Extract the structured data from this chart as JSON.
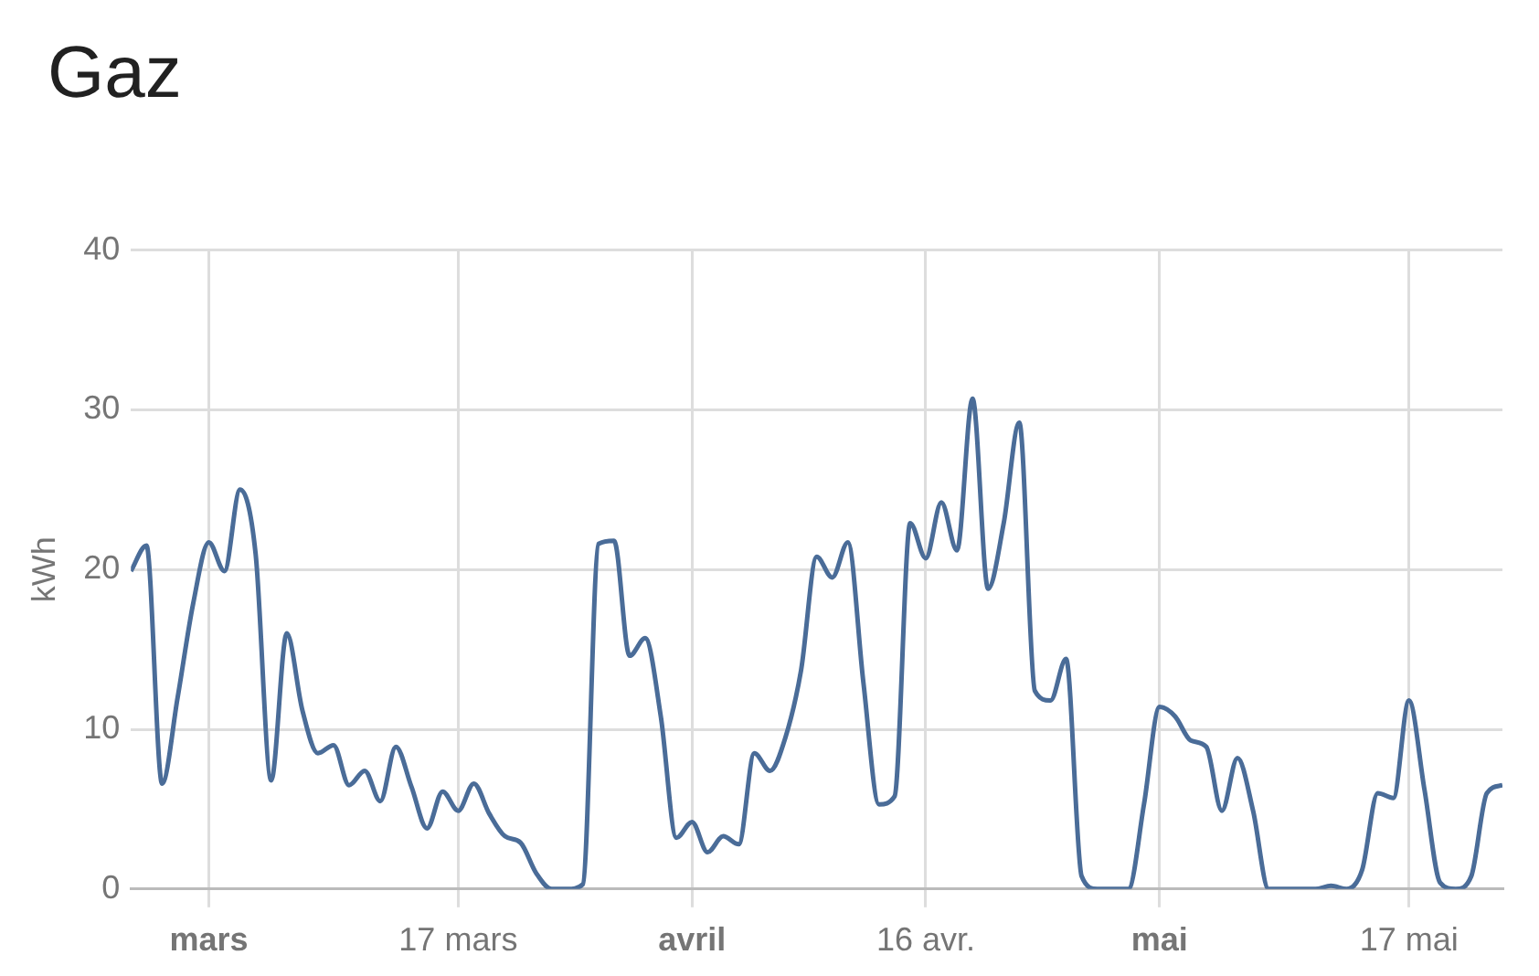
{
  "chart_data": {
    "type": "line",
    "title": "Gaz",
    "ylabel": "kWh",
    "x": [
      "--02-25",
      "--02-26",
      "--02-27",
      "--02-28",
      "--02-29",
      "--03-01",
      "--03-02",
      "--03-03",
      "--03-04",
      "--03-05",
      "--03-06",
      "--03-07",
      "--03-08",
      "--03-09",
      "--03-10",
      "--03-11",
      "--03-12",
      "--03-13",
      "--03-14",
      "--03-15",
      "--03-16",
      "--03-17",
      "--03-18",
      "--03-19",
      "--03-20",
      "--03-21",
      "--03-22",
      "--03-23",
      "--03-24",
      "--03-25",
      "--03-26",
      "--03-27",
      "--03-28",
      "--03-29",
      "--03-30",
      "--03-31",
      "--04-01",
      "--04-02",
      "--04-03",
      "--04-04",
      "--04-05",
      "--04-06",
      "--04-07",
      "--04-08",
      "--04-09",
      "--04-10",
      "--04-11",
      "--04-12",
      "--04-13",
      "--04-14",
      "--04-15",
      "--04-16",
      "--04-17",
      "--04-18",
      "--04-19",
      "--04-20",
      "--04-21",
      "--04-22",
      "--04-23",
      "--04-24",
      "--04-25",
      "--04-26",
      "--04-27",
      "--04-28",
      "--04-29",
      "--04-30",
      "--05-01",
      "--05-02",
      "--05-03",
      "--05-04",
      "--05-05",
      "--05-06",
      "--05-07",
      "--05-08",
      "--05-09",
      "--05-10",
      "--05-11",
      "--05-12",
      "--05-13",
      "--05-14",
      "--05-15",
      "--05-16",
      "--05-17",
      "--05-18",
      "--05-19",
      "--05-20",
      "--05-21",
      "--05-22",
      "--05-23"
    ],
    "series": [
      {
        "color": "#4a6c98",
        "values": [
          19.9,
          21.5,
          6.6,
          12,
          17.9,
          21.7,
          19.9,
          25,
          21,
          6.8,
          16,
          11.2,
          8.5,
          9,
          6.5,
          7.4,
          5.5,
          8.9,
          6.4,
          3.8,
          6.1,
          4.9,
          6.6,
          4.7,
          3.3,
          2.9,
          1,
          0,
          0,
          0.3,
          21.6,
          21.8,
          14.6,
          15.7,
          10.8,
          3.2,
          4.2,
          2.3,
          3.3,
          2.8,
          8.5,
          7.4,
          9.5,
          13.7,
          20.8,
          19.5,
          21.7,
          12.9,
          5.3,
          5.8,
          22.9,
          20.7,
          24.2,
          21.2,
          30.7,
          18.8,
          22.9,
          29.2,
          12.4,
          11.8,
          14.4,
          0.8,
          0,
          0,
          0,
          5.3,
          11.4,
          10.8,
          9.3,
          8.9,
          4.9,
          8.2,
          4.9,
          0,
          0,
          0,
          0,
          0.2,
          0,
          1.2,
          6,
          5.7,
          11.8,
          6.2,
          0.4,
          0,
          0.8,
          6,
          6.5
        ]
      }
    ],
    "xlim": [
      "--02-25",
      "--05-23"
    ],
    "xticks": [
      {
        "value": "--03-01",
        "label": "mars"
      },
      {
        "value": "--03-17",
        "label": "17 mars"
      },
      {
        "value": "--04-01",
        "label": "avril"
      },
      {
        "value": "--04-16",
        "label": "16 avr."
      },
      {
        "value": "--05-01",
        "label": "mai"
      },
      {
        "value": "--05-17",
        "label": "17 mai"
      }
    ],
    "ylim": [
      0,
      40
    ],
    "yticks": [
      0,
      10,
      20,
      30,
      40
    ],
    "grid": true,
    "legend": false,
    "marker": "none",
    "line_style": "solid"
  }
}
